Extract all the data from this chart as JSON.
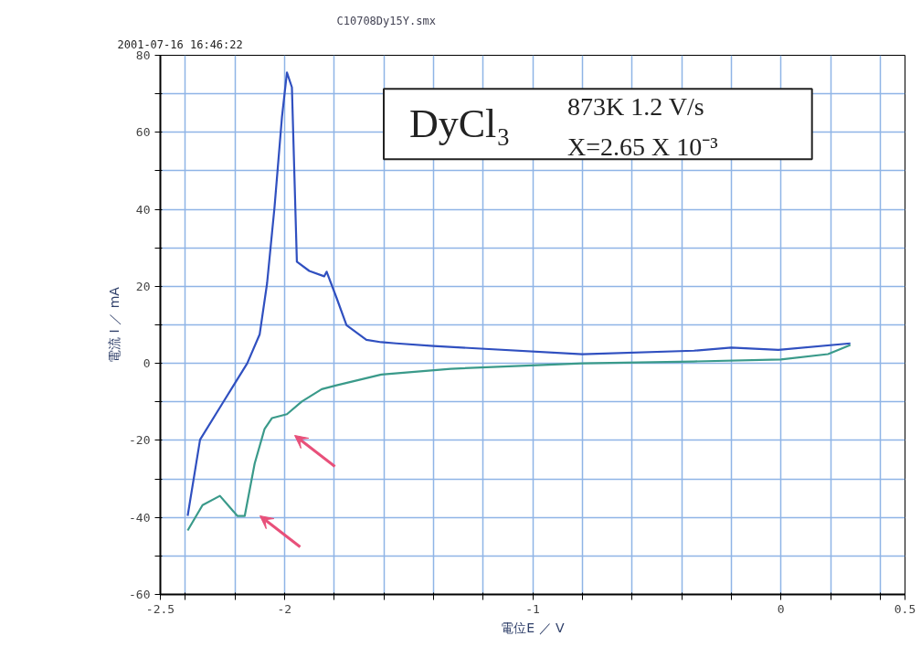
{
  "chart_data": {
    "type": "line",
    "xlabel": "電位E ／ V",
    "ylabel": "電流 I ／ mA",
    "series": [
      {
        "color": "#3050c0",
        "x": [
          -2.39,
          -2.34,
          -2.25,
          -2.15,
          -2.1,
          -2.07,
          -2.04,
          -2.01,
          -1.99,
          -1.97,
          -1.95,
          -1.9,
          -1.84,
          -1.83,
          -1.79,
          -1.75,
          -1.67,
          -1.61,
          -1.55,
          -1.4,
          -0.8,
          -0.35,
          -0.2,
          -0.01,
          0.28
        ],
        "values": [
          -39.6,
          -19.8,
          -10.4,
          0,
          7.5,
          20.8,
          40.6,
          64,
          75.5,
          71.7,
          26.4,
          24,
          22.6,
          23.8,
          17,
          9.9,
          6.1,
          5.5,
          5.2,
          4.5,
          2.4,
          3.3,
          4.1,
          3.5,
          5.2
        ]
      },
      {
        "color": "#3a9a8a",
        "x": [
          0.28,
          0.19,
          0,
          -0.35,
          -0.8,
          -1.33,
          -1.61,
          -1.79,
          -1.85,
          -1.93,
          -1.99,
          -2.05,
          -2.08,
          -2.12,
          -2.16,
          -2.19,
          -2.26,
          -2.33,
          -2.39
        ],
        "values": [
          4.8,
          2.4,
          1,
          0.5,
          0,
          -1.4,
          -2.9,
          -5.7,
          -6.7,
          -9.9,
          -13.2,
          -14.2,
          -17,
          -26,
          -39.6,
          -39.6,
          -34.4,
          -36.8,
          -43.4
        ]
      }
    ],
    "xlim": [
      -2.5,
      0.5
    ],
    "ylim": [
      -60,
      80
    ],
    "xticks": [
      -2.5,
      {
        "value": -2.4,
        "label": null
      },
      {
        "value": -2.2,
        "label": null
      },
      -2,
      {
        "value": -1.8,
        "label": null
      },
      {
        "value": -1.6,
        "label": null
      },
      {
        "value": -1.4,
        "label": null
      },
      {
        "value": -1.2,
        "label": null
      },
      -1,
      {
        "value": -0.8,
        "label": null
      },
      {
        "value": -0.6,
        "label": null
      },
      {
        "value": -0.4,
        "label": null
      },
      {
        "value": -0.2,
        "label": null
      },
      0,
      {
        "value": 0.2,
        "label": null
      },
      {
        "value": 0.4,
        "label": null
      },
      0.5
    ],
    "yticks": [
      -60,
      {
        "value": -50,
        "label": null
      },
      -40,
      {
        "value": -30,
        "label": null
      },
      -20,
      {
        "value": -10,
        "label": null
      },
      0,
      {
        "value": 10,
        "label": null
      },
      20,
      {
        "value": 30,
        "label": null
      },
      40,
      {
        "value": 50,
        "label": null
      },
      60,
      {
        "value": 70,
        "label": null
      },
      80
    ],
    "grid": true,
    "marker": "none",
    "line_style": "solid",
    "annotations": [
      "2001-07-16 16:46:22",
      "C10708Dy15Y.smx",
      "DyCl₃",
      "873K   1.2 V/s",
      "X=2.65 X 10⁻³"
    ]
  }
}
